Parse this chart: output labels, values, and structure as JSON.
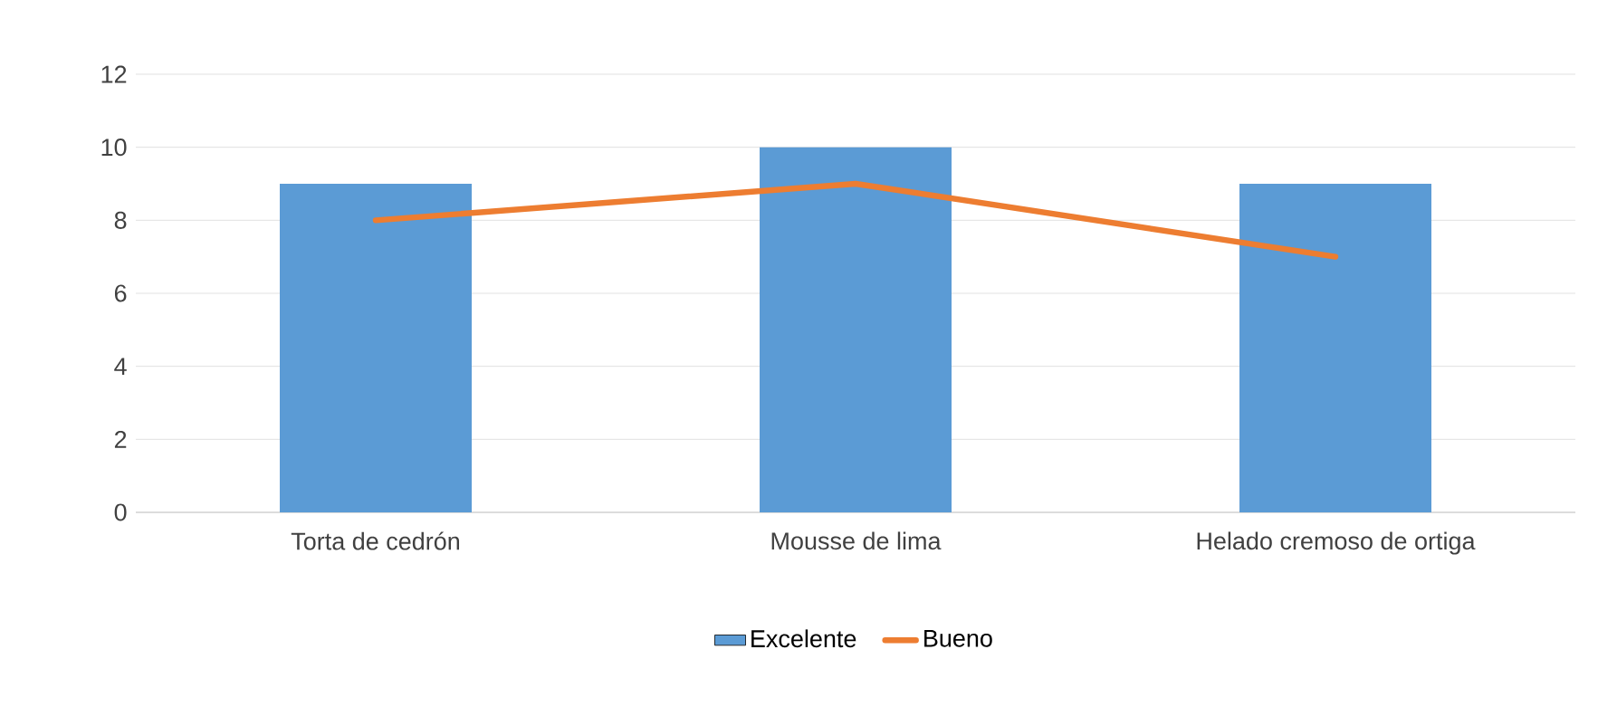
{
  "chart_data": {
    "type": "bar",
    "categories": [
      "Torta de cedrón",
      "Mousse de lima",
      "Helado cremoso de ortiga"
    ],
    "series": [
      {
        "name": "Excelente",
        "color": "#5b9bd5",
        "values": [
          9,
          10,
          9
        ]
      },
      {
        "name": "Bueno",
        "type": "line",
        "color": "#ed7d31",
        "values": [
          8,
          9,
          7
        ]
      }
    ],
    "ylim": [
      0,
      12
    ],
    "yticks": [
      0,
      2,
      4,
      6,
      8,
      10,
      12
    ],
    "grid": "y",
    "legend": "bottom"
  }
}
